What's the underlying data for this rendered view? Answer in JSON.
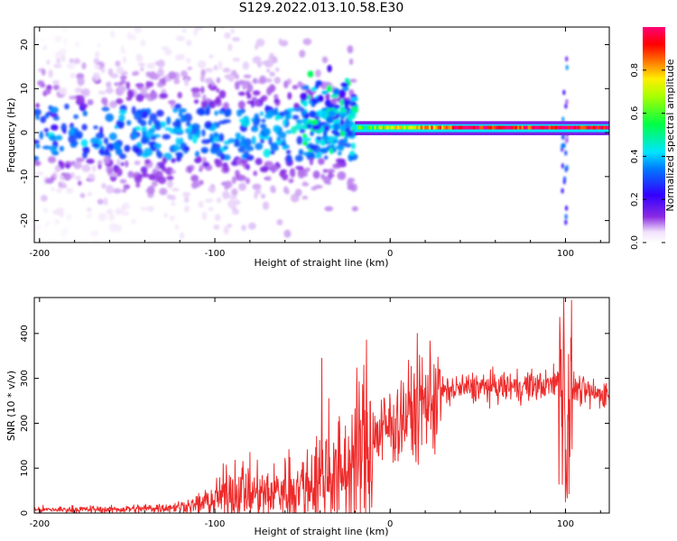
{
  "title": "S129.2022.013.10.58.E30",
  "colors": {
    "line": "#ee2b2b",
    "axes": "#000000"
  },
  "chart_data": [
    {
      "type": "heatmap",
      "title": "S129.2022.013.10.58.E30",
      "xlabel": "Height of straight line (km)",
      "ylabel": "Frequency (Hz)",
      "xlim": [
        -203,
        125
      ],
      "ylim": [
        -25,
        24
      ],
      "xticks": [
        -200,
        -100,
        0,
        100
      ],
      "xtick_labels": [
        "-200",
        "-100",
        "0",
        "100"
      ],
      "yticks": [
        -20,
        -10,
        0,
        10,
        20
      ],
      "ytick_labels": [
        "-20",
        "-10",
        "0",
        "10",
        "20"
      ],
      "colorbar": {
        "label": "Normalized spectral amplitude",
        "range": [
          0,
          1
        ],
        "ticks": [
          0.0,
          0.2,
          0.4,
          0.6,
          0.8
        ],
        "tick_labels": [
          "0.0",
          "0.2",
          "0.4",
          "0.6",
          "0.8"
        ],
        "colormap": "rainbow (white → violet → blue → cyan → green → yellow → red → magenta)"
      },
      "features": [
        {
          "x_range": [
            -203,
            -20
          ],
          "freq_center": 0,
          "freq_spread": 10,
          "amplitude": 0.15,
          "description": "scattered low-amplitude noise"
        },
        {
          "x_range": [
            -50,
            -20
          ],
          "freq_center": 4,
          "amplitude": 0.45,
          "description": "broadband energy"
        },
        {
          "x_range": [
            -20,
            125
          ],
          "freq_center": 1,
          "amplitude": 0.95,
          "description": "narrow tonal line near 1 Hz"
        },
        {
          "x_range": [
            98,
            101
          ],
          "freq_center": 0,
          "freq_spread": 20,
          "amplitude": 0.3,
          "description": "broadband spike"
        }
      ]
    },
    {
      "type": "line",
      "xlabel": "Height of straight line (km)",
      "ylabel": "SNR (10 * v/v)",
      "xlim": [
        -203,
        125
      ],
      "ylim": [
        0,
        480
      ],
      "xticks": [
        -200,
        -100,
        0,
        100
      ],
      "xtick_labels": [
        "-200",
        "-100",
        "0",
        "100"
      ],
      "yticks": [
        0,
        100,
        200,
        300,
        400
      ],
      "ytick_labels": [
        "0",
        "100",
        "200",
        "300",
        "400"
      ],
      "series": [
        {
          "x": [
            -203,
            -180,
            -160,
            -140,
            -120,
            -110,
            -100,
            -90,
            -80,
            -70,
            -60,
            -50,
            -45,
            -40,
            -38,
            -30,
            -25,
            -20,
            -10,
            0,
            10,
            20,
            30,
            40,
            50,
            60,
            70,
            80,
            90,
            95,
            97,
            99,
            100,
            101,
            103,
            105,
            110,
            115,
            120,
            125
          ],
          "y": [
            7,
            8,
            8,
            10,
            14,
            18,
            30,
            50,
            45,
            40,
            55,
            60,
            70,
            80,
            90,
            85,
            95,
            120,
            170,
            195,
            220,
            250,
            270,
            278,
            280,
            280,
            282,
            283,
            285,
            290,
            320,
            240,
            180,
            200,
            270,
            280,
            270,
            265,
            266,
            265
          ],
          "peaks": [
            [
              -84,
              115
            ],
            [
              -39,
              345
            ],
            [
              -35,
              255
            ],
            [
              99,
              480
            ],
            [
              100,
              25
            ],
            [
              103,
              390
            ]
          ]
        }
      ]
    }
  ]
}
